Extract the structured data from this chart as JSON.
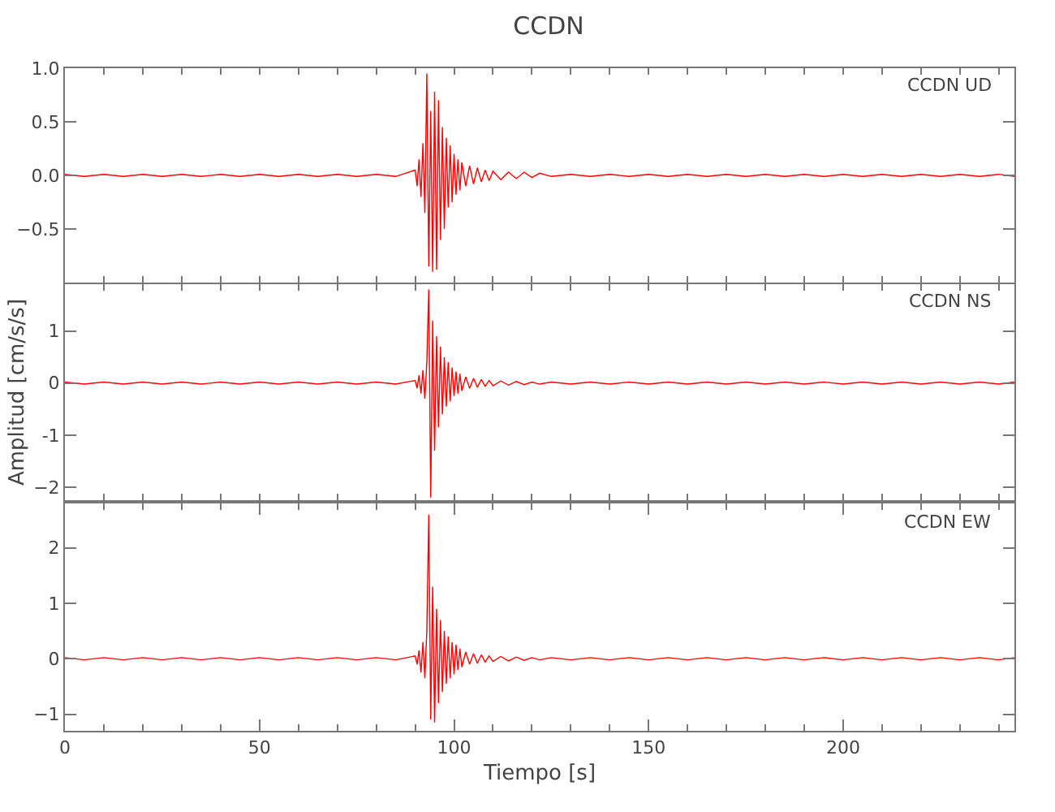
{
  "chart_data": [
    {
      "type": "line",
      "title": "CCDN",
      "annotations": [
        "CCDN UD"
      ],
      "color": "#ff0000",
      "tick_labels": "y",
      "xlim": [
        0,
        244
      ],
      "xticks": [
        {
          "value": 0,
          "label": null
        },
        {
          "value": 50,
          "label": null
        },
        {
          "value": 100,
          "label": null
        },
        {
          "value": 150,
          "label": null
        },
        {
          "value": 200,
          "label": null
        }
      ],
      "ylim": [
        -1,
        1
      ],
      "yticks": [
        {
          "value": 1,
          "label": "1.0"
        },
        {
          "value": 0.5,
          "label": "0.5"
        },
        {
          "value": 0,
          "label": "0.0"
        },
        {
          "value": -0.5,
          "label": "−0.5"
        },
        {
          "value": -1,
          "label": null
        }
      ],
      "x": [
        0,
        5,
        10,
        15,
        20,
        25,
        30,
        35,
        40,
        45,
        50,
        55,
        60,
        65,
        70,
        75,
        80,
        85,
        90,
        90.5,
        91,
        91.5,
        92,
        92.5,
        93,
        93.5,
        94,
        94.5,
        95,
        95.5,
        96,
        96.5,
        97,
        97.5,
        98,
        98.5,
        99,
        99.5,
        100,
        100.5,
        101,
        101.5,
        102,
        103,
        104,
        105,
        106,
        107,
        108,
        109,
        110,
        112,
        114,
        116,
        118,
        120,
        122,
        125,
        130,
        135,
        140,
        145,
        150,
        155,
        160,
        165,
        170,
        175,
        180,
        185,
        190,
        195,
        200,
        205,
        210,
        215,
        220,
        225,
        230,
        235,
        240,
        244
      ],
      "values": [
        0.01,
        -0.01,
        0.01,
        -0.01,
        0.01,
        -0.01,
        0.01,
        -0.01,
        0.01,
        -0.01,
        0.01,
        -0.01,
        0.01,
        -0.01,
        0.01,
        -0.01,
        0.01,
        -0.01,
        0.05,
        -0.1,
        0.15,
        -0.2,
        0.3,
        -0.35,
        0.95,
        -0.85,
        0.6,
        -0.9,
        0.78,
        -0.88,
        0.7,
        -0.6,
        0.45,
        -0.5,
        0.35,
        -0.3,
        0.28,
        -0.25,
        0.2,
        -0.18,
        0.15,
        -0.14,
        0.12,
        -0.1,
        0.09,
        -0.08,
        0.07,
        -0.06,
        0.05,
        -0.05,
        0.04,
        -0.04,
        0.03,
        -0.03,
        0.03,
        -0.02,
        0.02,
        -0.01,
        0.01,
        -0.01,
        0.01,
        -0.01,
        0.01,
        -0.01,
        0.01,
        -0.01,
        0.01,
        -0.01,
        0.01,
        -0.01,
        0.01,
        -0.01,
        0.01,
        -0.01,
        0.01,
        -0.01,
        0.01,
        -0.01,
        0.01,
        -0.01,
        0.01,
        -0.01
      ]
    },
    {
      "type": "line",
      "ylabel": "Amplitud [cm/s/s]",
      "annotations": [
        "CCDN NS"
      ],
      "color": "#ff0000",
      "tick_labels": "y",
      "xlim": [
        0,
        244
      ],
      "xticks": [
        {
          "value": 0,
          "label": null
        },
        {
          "value": 50,
          "label": null
        },
        {
          "value": 100,
          "label": null
        },
        {
          "value": 150,
          "label": null
        },
        {
          "value": 200,
          "label": null
        }
      ],
      "ylim": [
        -2.25,
        1.9
      ],
      "yticks": [
        1,
        0,
        -1,
        {
          "value": -2,
          "label": "−2"
        }
      ],
      "x": [
        0,
        5,
        10,
        15,
        20,
        25,
        30,
        35,
        40,
        45,
        50,
        55,
        60,
        65,
        70,
        75,
        80,
        85,
        90,
        90.5,
        91,
        91.5,
        92,
        92.5,
        93,
        93.5,
        94,
        94.5,
        95,
        95.5,
        96,
        96.5,
        97,
        97.5,
        98,
        98.5,
        99,
        99.5,
        100,
        100.5,
        101,
        101.5,
        102,
        103,
        104,
        105,
        106,
        107,
        108,
        109,
        110,
        112,
        114,
        116,
        118,
        120,
        122,
        125,
        130,
        135,
        140,
        145,
        150,
        155,
        160,
        165,
        170,
        175,
        180,
        185,
        190,
        195,
        200,
        205,
        210,
        215,
        220,
        225,
        230,
        235,
        240,
        244
      ],
      "values": [
        0.02,
        -0.02,
        0.02,
        -0.02,
        0.02,
        -0.02,
        0.02,
        -0.02,
        0.02,
        -0.02,
        0.02,
        -0.02,
        0.02,
        -0.02,
        0.02,
        -0.02,
        0.02,
        -0.02,
        0.05,
        -0.1,
        0.15,
        -0.2,
        0.25,
        -0.3,
        0.4,
        1.8,
        -2.2,
        1.2,
        -1.3,
        0.9,
        -0.85,
        0.7,
        -0.6,
        0.5,
        -0.45,
        0.4,
        -0.35,
        0.3,
        -0.25,
        0.22,
        -0.2,
        0.18,
        -0.15,
        0.12,
        -0.1,
        0.09,
        -0.08,
        0.07,
        -0.06,
        0.05,
        -0.05,
        0.04,
        -0.04,
        0.03,
        -0.03,
        0.02,
        -0.02,
        0.02,
        -0.02,
        0.02,
        -0.02,
        0.02,
        -0.02,
        0.02,
        -0.02,
        0.02,
        -0.02,
        0.02,
        -0.02,
        0.02,
        -0.02,
        0.02,
        -0.02,
        0.02,
        -0.02,
        0.02,
        -0.02,
        0.02,
        -0.02,
        0.02,
        -0.02,
        0.02
      ]
    },
    {
      "type": "line",
      "xlabel": "Tiempo [s]",
      "annotations": [
        "CCDN EW"
      ],
      "color": "#ff0000",
      "xlim": [
        0,
        244
      ],
      "xticks": [
        0,
        50,
        100,
        150,
        200
      ],
      "ylim": [
        -1.3,
        2.8
      ],
      "yticks": [
        2,
        1,
        0,
        {
          "value": -1,
          "label": "−1"
        }
      ],
      "x": [
        0,
        5,
        10,
        15,
        20,
        25,
        30,
        35,
        40,
        45,
        50,
        55,
        60,
        65,
        70,
        75,
        80,
        85,
        90,
        90.5,
        91,
        91.5,
        92,
        92.5,
        93,
        93.5,
        94,
        94.5,
        95,
        95.5,
        96,
        96.5,
        97,
        97.5,
        98,
        98.5,
        99,
        99.5,
        100,
        100.5,
        101,
        101.5,
        102,
        103,
        104,
        105,
        106,
        107,
        108,
        109,
        110,
        112,
        114,
        116,
        118,
        120,
        122,
        125,
        130,
        135,
        140,
        145,
        150,
        155,
        160,
        165,
        170,
        175,
        180,
        185,
        190,
        195,
        200,
        205,
        210,
        215,
        220,
        225,
        230,
        235,
        240,
        244
      ],
      "values": [
        0.02,
        -0.02,
        0.02,
        -0.02,
        0.02,
        -0.02,
        0.02,
        -0.02,
        0.02,
        -0.02,
        0.02,
        -0.02,
        0.02,
        -0.02,
        0.02,
        -0.02,
        0.02,
        -0.02,
        0.05,
        -0.1,
        0.15,
        -0.25,
        0.3,
        -0.35,
        0.5,
        2.6,
        -1.1,
        1.3,
        -1.15,
        0.9,
        -0.8,
        0.7,
        -0.6,
        0.5,
        -0.45,
        0.4,
        -0.35,
        0.3,
        -0.28,
        0.25,
        -0.2,
        0.18,
        -0.15,
        0.12,
        -0.1,
        0.09,
        -0.08,
        0.07,
        -0.06,
        0.05,
        -0.05,
        0.04,
        -0.04,
        0.03,
        -0.03,
        0.02,
        -0.02,
        0.02,
        -0.02,
        0.02,
        -0.02,
        0.02,
        -0.02,
        0.02,
        -0.02,
        0.02,
        -0.02,
        0.02,
        -0.02,
        0.02,
        -0.02,
        0.02,
        -0.02,
        0.02,
        -0.02,
        0.02,
        -0.02,
        0.02,
        -0.02,
        0.02,
        -0.02,
        0.02
      ]
    }
  ]
}
